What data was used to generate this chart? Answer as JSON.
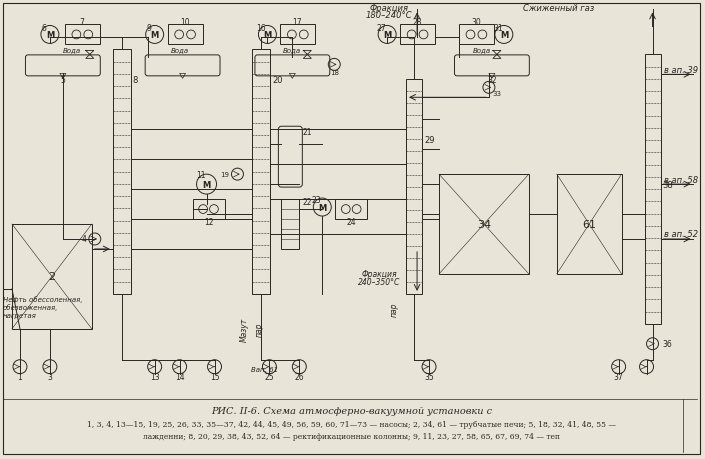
{
  "title": "РИС. II-6. Схема атмосферно-вакуумной установки с",
  "caption_line1": "1, 3, 4, 13—15, 19, 25, 26, 33, 35—37, 42, 44, 45, 49, 56, 59, 60, 71—73 — насосы; 2, 34, 61 — трубчатые печи; 5, 18, 32, 41, 48, 55 —",
  "caption_line2": "лажденни; 8, 20, 29, 38, 43, 52, 64 — ректификационные колонны; 9, 11, 23, 27, 58, 65, 67, 69, 74 — теп",
  "bg_color": "#e8e4d8",
  "line_color": "#2a2520"
}
